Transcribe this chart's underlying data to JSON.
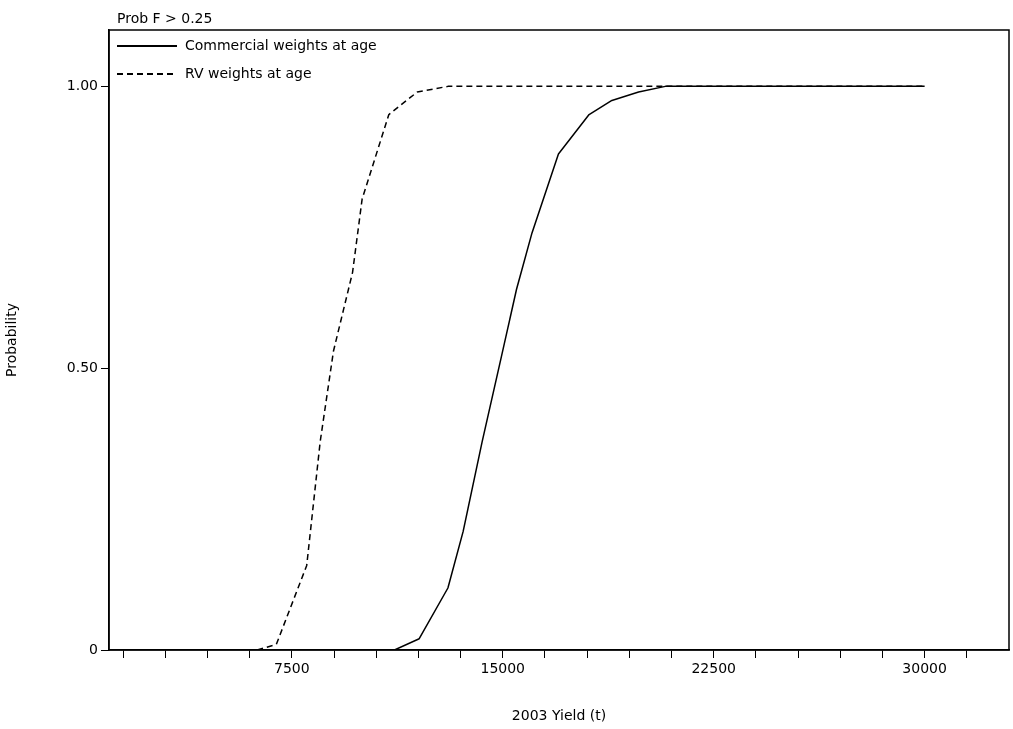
{
  "chart_data": {
    "type": "line",
    "title": "Prob F > 0.25",
    "xlabel": "2003 Yield (t)",
    "ylabel": "Probability",
    "xlim": [
      1000,
      33000
    ],
    "xticks": [
      {
        "value": 1500,
        "label": null
      },
      {
        "value": 3000,
        "label": null
      },
      {
        "value": 4500,
        "label": null
      },
      {
        "value": 6000,
        "label": null
      },
      7500,
      {
        "value": 9000,
        "label": null
      },
      {
        "value": 10500,
        "label": null
      },
      {
        "value": 12000,
        "label": null
      },
      {
        "value": 13500,
        "label": null
      },
      15000,
      {
        "value": 16500,
        "label": null
      },
      {
        "value": 18000,
        "label": null
      },
      {
        "value": 19500,
        "label": null
      },
      {
        "value": 21000,
        "label": null
      },
      22500,
      {
        "value": 24000,
        "label": null
      },
      {
        "value": 25500,
        "label": null
      },
      {
        "value": 27000,
        "label": null
      },
      {
        "value": 28500,
        "label": null
      },
      30000,
      {
        "value": 31500,
        "label": null
      }
    ],
    "ylim": [
      0,
      1.1
    ],
    "yticks": [
      0,
      {
        "value": 0.5,
        "label": "0.50"
      },
      {
        "value": 1,
        "label": "1.00"
      }
    ],
    "grid": false,
    "legend": "top left",
    "marker": "none",
    "series": [
      {
        "name": "Commercial weights at age",
        "color": "#000000",
        "line_style": "solid",
        "x": [
          11150,
          12030,
          13050,
          13590,
          14270,
          14950,
          15490,
          16040,
          16980,
          18070,
          18880,
          19830,
          20780,
          30000
        ],
        "values": [
          0,
          0.02,
          0.11,
          0.21,
          0.37,
          0.52,
          0.64,
          0.74,
          0.88,
          0.95,
          0.975,
          0.99,
          1,
          1
        ]
      },
      {
        "name": "RV weights at age",
        "color": "#000000",
        "line_style": "dashed",
        "x": [
          6270,
          6950,
          8030,
          8510,
          8980,
          9660,
          10000,
          10950,
          11960,
          13050,
          30000
        ],
        "values": [
          0,
          0.01,
          0.15,
          0.37,
          0.53,
          0.67,
          0.8,
          0.95,
          0.99,
          1,
          1
        ]
      }
    ]
  }
}
